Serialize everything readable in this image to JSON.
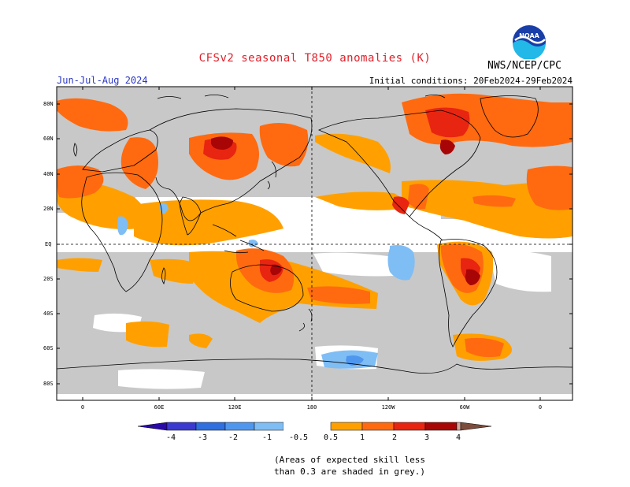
{
  "header": {
    "title": "CFSv2 seasonal T850 anomalies (K)",
    "season": "Jun-Jul-Aug 2024",
    "initial_conditions": "Initial conditions: 20Feb2024-29Feb2024",
    "organization": "NWS/NCEP/CPC",
    "logo_text": "NOAA"
  },
  "map": {
    "lat_labels": [
      "80N",
      "60N",
      "40N",
      "20N",
      "EQ",
      "20S",
      "40S",
      "60S",
      "80S"
    ],
    "lon_labels": [
      "0",
      "60E",
      "120E",
      "180",
      "120W",
      "60W",
      "0"
    ]
  },
  "colorbar": {
    "labels": [
      "-4",
      "-3",
      "-2",
      "-1",
      "-0.5",
      "0.5",
      "1",
      "2",
      "3",
      "4"
    ],
    "colors": {
      "lt_-4": "#2a0aa6",
      "-4_-3": "#3a3ad0",
      "-3_-2": "#2f6fe0",
      "-2_-1": "#4f97ee",
      "-1_-0.5": "#7fbdf5",
      "-0.5_0.5": "#ffffff",
      "0.5_1": "#ffa000",
      "1_2": "#ff6a10",
      "2_3": "#e82510",
      "3_4": "#a80606",
      "gt_4": "#d4a59a",
      "cap_high": "#7c4c3c"
    }
  },
  "footnote": {
    "line1": "(Areas of expected skill less",
    "line2": "than 0.3 are shaded in grey.)"
  },
  "colors": {
    "grey_skill_mask": "#c8c8c8",
    "title_red": "#e0202a",
    "season_blue": "#2a36c8"
  }
}
